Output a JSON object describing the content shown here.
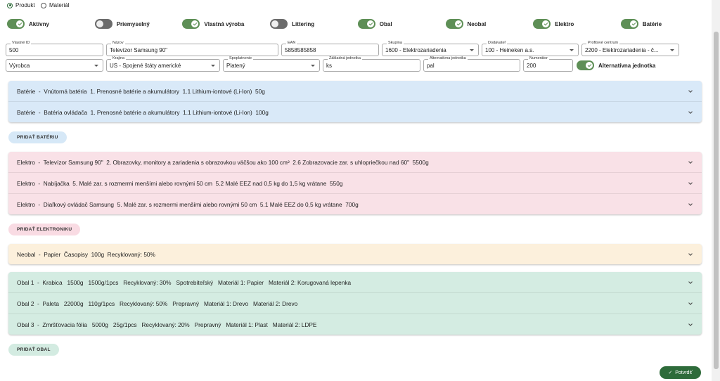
{
  "radio": {
    "options": [
      "Produkt",
      "Materiál"
    ],
    "selected": 0
  },
  "toggles": [
    {
      "label": "Aktívny",
      "on": true
    },
    {
      "label": "Priemyselný",
      "on": false
    },
    {
      "label": "Vlastná výroba",
      "on": true
    },
    {
      "label": "Littering",
      "on": false
    },
    {
      "label": "Obal",
      "on": true
    },
    {
      "label": "Neobal",
      "on": true
    },
    {
      "label": "Elektro",
      "on": true
    },
    {
      "label": "Batérie",
      "on": true
    }
  ],
  "fields": [
    [
      {
        "label": "Vlastné ID",
        "value": "500",
        "select": false
      },
      {
        "label": "Názov",
        "value": "Televízor Samsung 90\"",
        "select": false
      },
      {
        "label": "EAN",
        "value": "5858585858",
        "select": false
      },
      {
        "label": "Skupina",
        "value": "1600 - Elektrozariadenia",
        "select": true
      },
      {
        "label": "Dodávateľ",
        "value": "100 - Heineken a.s.",
        "select": true
      },
      {
        "label": "Profitové centrum",
        "value": "2200 - Elektrozariadenia - č...",
        "select": true
      }
    ],
    [
      {
        "value": "Výrobca",
        "select": true
      },
      {
        "label": "Krajina",
        "value": "US - Spojené štáty americké",
        "select": true
      },
      {
        "label": "Spoplatnenie",
        "value": "Platený",
        "select": true
      },
      {
        "label": "Základná jednotka",
        "value": "ks",
        "select": false
      },
      {
        "label": "Alternatívna jednotka",
        "value": "pal",
        "select": false
      },
      {
        "label": "Numerátor",
        "value": "200",
        "select": false
      }
    ]
  ],
  "alt_toggle": {
    "label": "Alternatívna jednotka",
    "on": true
  },
  "groups": [
    {
      "color": "#d9e9f8",
      "button_color": "#d6e8f7",
      "rows": [
        "Batérie  -  Vnútorná batéria  1. Prenosné batérie a akumulátory  1.1 Lithium-iontové (Li-Ion)  50g",
        "Batérie  -  Batéria ovládača  1. Prenosné batérie a akumulátory  1.1 Lithium-iontové (Li-Ion)  100g"
      ],
      "button": "PRIDAŤ BATÉRIU"
    },
    {
      "color": "#f9e1e7",
      "button_color": "#f9dbe3",
      "rows": [
        "Elektro  -  Televízor Samsung 90\"  2. Obrazovky, monitory a zariadenia s obrazovkou väčšou ako 100 cm²  2.6 Zobrazovacie zar. s uhlopriečkou nad 60\"  5500g",
        "Elektro  -  Nabíjačka  5. Malé zar. s rozmermi menšími alebo rovnými 50 cm  5.2 Malé EEZ nad 0,5 kg do 1,5 kg vrátane  550g",
        "Elektro  -  Diaľkový ovládač Samsung  5. Malé zar. s rozmermi menšími alebo rovnými 50 cm  5.1 Malé EEZ do 0,5 kg vrátane  700g"
      ],
      "button": "PRIDAŤ ELEKTRONIKU"
    },
    {
      "color": "#fcf0dc",
      "rows": [
        "Neobal  -  Papier  Časopisy  100g  Recyklovaný: 50%"
      ]
    },
    {
      "color": "#d4ece2",
      "button_color": "#d3ebe1",
      "rows": [
        "Obal 1  -  Krabica   1500g   1500g/1pcs   Recyklovaný: 30%   Spotrebiteľský   Materiál 1: Papier   Materiál 2: Korugovaná lepenka",
        "Obal 2  -  Paleta   22000g   110g/1pcs   Recyklovaný: 50%   Prepravný   Materiál 1: Drevo   Materiál 2: Drevo",
        "Obal 3  -  Zmršťovacia fólia   5000g   25g/1pcs   Recyklovaný: 20%   Prepravný   Materiál 1: Plast   Materiál 2: LDPE"
      ],
      "button": "PRIDAŤ OBAL"
    }
  ],
  "confirm": "Potvrdiť"
}
